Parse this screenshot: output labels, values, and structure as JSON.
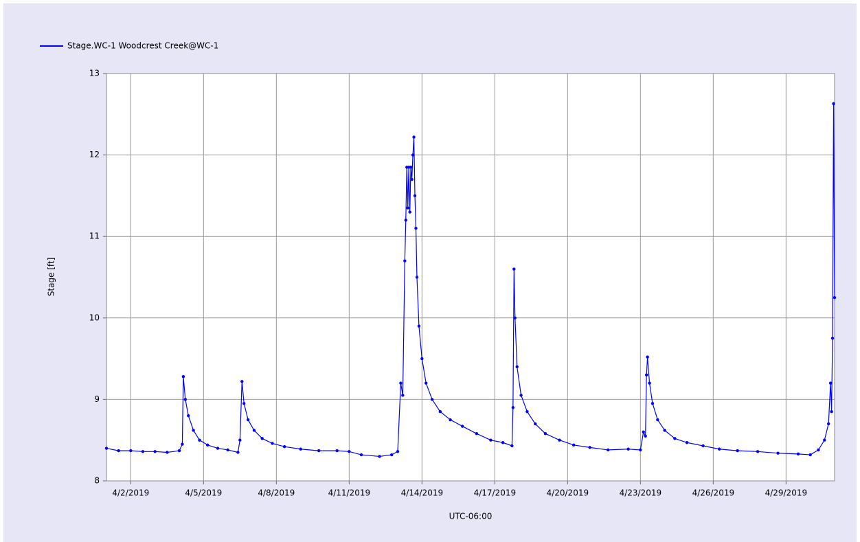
{
  "chart_data": {
    "type": "line",
    "legend": "top-left",
    "grid": true,
    "ylabel": "Stage [ft]",
    "xlabel": "UTC-06:00",
    "xlim": [
      "2019-04-01T00:00",
      "2019-05-01T00:00"
    ],
    "xticks": [
      {
        "value": "2019-04-02T00:00",
        "label": "4/2/2019"
      },
      {
        "value": "2019-04-05T00:00",
        "label": "4/5/2019"
      },
      {
        "value": "2019-04-08T00:00",
        "label": "4/8/2019"
      },
      {
        "value": "2019-04-11T00:00",
        "label": "4/11/2019"
      },
      {
        "value": "2019-04-14T00:00",
        "label": "4/14/2019"
      },
      {
        "value": "2019-04-17T00:00",
        "label": "4/17/2019"
      },
      {
        "value": "2019-04-20T00:00",
        "label": "4/20/2019"
      },
      {
        "value": "2019-04-23T00:00",
        "label": "4/23/2019"
      },
      {
        "value": "2019-04-26T00:00",
        "label": "4/26/2019"
      },
      {
        "value": "2019-04-29T00:00",
        "label": "4/29/2019"
      }
    ],
    "ylim": [
      8,
      13
    ],
    "yticks": [
      8,
      9,
      10,
      11,
      12,
      13
    ],
    "x": [
      "2019-04-01T00:00",
      "2019-04-01T12:00",
      "2019-04-02T00:00",
      "2019-04-02T12:00",
      "2019-04-03T00:00",
      "2019-04-03T12:00",
      "2019-04-04T00:00",
      "2019-04-04T03:00",
      "2019-04-04T04:00",
      "2019-04-04T06:00",
      "2019-04-04T09:00",
      "2019-04-04T14:00",
      "2019-04-04T20:00",
      "2019-04-05T04:00",
      "2019-04-05T14:00",
      "2019-04-06T00:00",
      "2019-04-06T10:00",
      "2019-04-06T12:00",
      "2019-04-06T14:00",
      "2019-04-06T16:00",
      "2019-04-06T20:00",
      "2019-04-07T02:00",
      "2019-04-07T10:00",
      "2019-04-07T20:00",
      "2019-04-08T08:00",
      "2019-04-09T00:00",
      "2019-04-09T18:00",
      "2019-04-10T12:00",
      "2019-04-11T00:00",
      "2019-04-11T12:00",
      "2019-04-12T06:00",
      "2019-04-12T18:00",
      "2019-04-13T00:00",
      "2019-04-13T03:00",
      "2019-04-13T05:00",
      "2019-04-13T07:00",
      "2019-04-13T08:00",
      "2019-04-13T09:00",
      "2019-04-13T10:00",
      "2019-04-13T11:00",
      "2019-04-13T12:00",
      "2019-04-13T13:00",
      "2019-04-13T14:00",
      "2019-04-13T15:00",
      "2019-04-13T16:00",
      "2019-04-13T17:00",
      "2019-04-13T18:00",
      "2019-04-13T19:00",
      "2019-04-13T21:00",
      "2019-04-14T00:00",
      "2019-04-14T04:00",
      "2019-04-14T10:00",
      "2019-04-14T18:00",
      "2019-04-15T04:00",
      "2019-04-15T16:00",
      "2019-04-16T06:00",
      "2019-04-16T20:00",
      "2019-04-17T08:00",
      "2019-04-17T17:00",
      "2019-04-17T18:00",
      "2019-04-17T19:00",
      "2019-04-17T20:00",
      "2019-04-17T22:00",
      "2019-04-18T02:00",
      "2019-04-18T08:00",
      "2019-04-18T16:00",
      "2019-04-19T02:00",
      "2019-04-19T16:00",
      "2019-04-20T06:00",
      "2019-04-20T22:00",
      "2019-04-21T16:00",
      "2019-04-22T12:00",
      "2019-04-23T00:00",
      "2019-04-23T03:00",
      "2019-04-23T05:00",
      "2019-04-23T06:00",
      "2019-04-23T07:00",
      "2019-04-23T09:00",
      "2019-04-23T12:00",
      "2019-04-23T17:00",
      "2019-04-24T00:00",
      "2019-04-24T10:00",
      "2019-04-24T22:00",
      "2019-04-25T14:00",
      "2019-04-26T06:00",
      "2019-04-27T00:00",
      "2019-04-27T20:00",
      "2019-04-28T16:00",
      "2019-04-29T12:00",
      "2019-04-30T00:00",
      "2019-04-30T08:00",
      "2019-04-30T14:00",
      "2019-04-30T18:00",
      "2019-04-30T20:00",
      "2019-04-30T21:00",
      "2019-04-30T22:00",
      "2019-04-30T23:00",
      "2019-05-01T00:00"
    ],
    "series": [
      {
        "name": "Stage.WC-1 Woodcrest Creek@WC-1",
        "color": "#0000ff",
        "values": [
          8.4,
          8.37,
          8.37,
          8.36,
          8.36,
          8.35,
          8.37,
          8.45,
          9.28,
          9.0,
          8.8,
          8.62,
          8.5,
          8.44,
          8.4,
          8.38,
          8.35,
          8.5,
          9.22,
          8.95,
          8.75,
          8.62,
          8.52,
          8.46,
          8.42,
          8.39,
          8.37,
          8.37,
          8.36,
          8.32,
          8.3,
          8.32,
          8.36,
          9.2,
          9.05,
          10.7,
          11.2,
          11.85,
          11.35,
          11.85,
          11.3,
          11.85,
          11.7,
          12.0,
          12.22,
          11.5,
          11.1,
          10.5,
          9.9,
          9.5,
          9.2,
          9.0,
          8.85,
          8.75,
          8.67,
          8.58,
          8.5,
          8.47,
          8.43,
          8.9,
          10.6,
          10.0,
          9.4,
          9.05,
          8.85,
          8.7,
          8.58,
          8.5,
          8.44,
          8.41,
          8.38,
          8.39,
          8.38,
          8.6,
          8.55,
          9.3,
          9.52,
          9.2,
          8.95,
          8.75,
          8.62,
          8.52,
          8.47,
          8.43,
          8.39,
          8.37,
          8.36,
          8.34,
          8.33,
          8.32,
          8.38,
          8.5,
          8.7,
          9.2,
          8.85,
          9.75,
          12.63,
          10.25
        ]
      }
    ]
  }
}
